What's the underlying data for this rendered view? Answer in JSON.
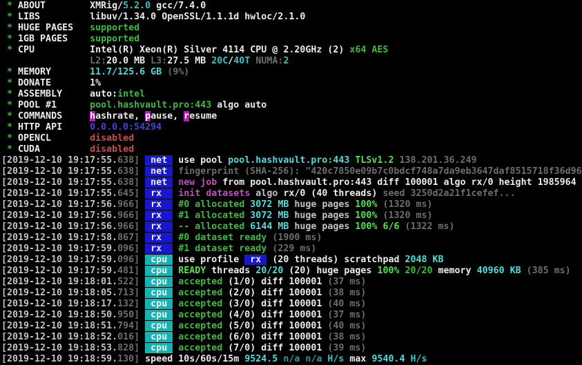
{
  "app": {
    "name": "XMRig",
    "version": "5.2.0"
  },
  "palette": {
    "background": "#000000",
    "text": "#c3c3c3",
    "bright_text": "#ececec",
    "green": "#3dbb3d",
    "bright_green": "#55e055",
    "cyan": "#3ec0c0",
    "bright_cyan": "#52dcdc",
    "dim": "#6e6e6e",
    "magenta": "#c24fc2",
    "red": "#cf4a4a",
    "blue": "#4545d4",
    "net_tag_bg": "#1717cd",
    "cpu_tag_bg": "#16b3b3",
    "hotkey_bg": "#bf17bf"
  },
  "terminal": {
    "lines": [
      [
        {
          "t": " * ",
          "c": "g"
        },
        {
          "t": "ABOUT",
          "c": "bw"
        },
        {
          "t": "        ",
          "c": "w"
        },
        {
          "t": "XMRig/",
          "c": "bw"
        },
        {
          "t": "5.2.0",
          "c": "c"
        },
        {
          "t": " gcc/7.4.0",
          "c": "bw"
        }
      ],
      [
        {
          "t": " * ",
          "c": "g"
        },
        {
          "t": "LIBS",
          "c": "bw"
        },
        {
          "t": "         ",
          "c": "w"
        },
        {
          "t": "libuv/1.34.0 OpenSSL/1.1.1d hwloc/2.1.0",
          "c": "bw"
        }
      ],
      [
        {
          "t": " * ",
          "c": "g"
        },
        {
          "t": "HUGE PAGES",
          "c": "bw"
        },
        {
          "t": "   ",
          "c": "w"
        },
        {
          "t": "supported",
          "c": "g"
        }
      ],
      [
        {
          "t": " * ",
          "c": "g"
        },
        {
          "t": "1GB PAGES",
          "c": "bw"
        },
        {
          "t": "    ",
          "c": "w"
        },
        {
          "t": "supported",
          "c": "g"
        }
      ],
      [
        {
          "t": " * ",
          "c": "g"
        },
        {
          "t": "CPU",
          "c": "bw"
        },
        {
          "t": "          ",
          "c": "w"
        },
        {
          "t": "Intel(R) Xeon(R) Silver 4114 CPU @ 2.20GHz (2) ",
          "c": "bw"
        },
        {
          "t": "x64 AES",
          "c": "g"
        }
      ],
      [
        {
          "t": "                ",
          "c": "w"
        },
        {
          "t": "L2:",
          "c": "d"
        },
        {
          "t": "20.0 MB ",
          "c": "bw"
        },
        {
          "t": "L3:",
          "c": "d"
        },
        {
          "t": "27.5 MB ",
          "c": "bw"
        },
        {
          "t": "20C",
          "c": "c"
        },
        {
          "t": "/",
          "c": "bw"
        },
        {
          "t": "40T",
          "c": "c"
        },
        {
          "t": " NUMA:",
          "c": "d"
        },
        {
          "t": "2",
          "c": "c"
        }
      ],
      [
        {
          "t": " * ",
          "c": "g"
        },
        {
          "t": "MEMORY",
          "c": "bw"
        },
        {
          "t": "       ",
          "c": "w"
        },
        {
          "t": "11.7/125.6 GB ",
          "c": "cb"
        },
        {
          "t": "(9%)",
          "c": "d"
        }
      ],
      [
        {
          "t": " * ",
          "c": "g"
        },
        {
          "t": "DONATE",
          "c": "bw"
        },
        {
          "t": "       ",
          "c": "w"
        },
        {
          "t": "1%",
          "c": "bw"
        }
      ],
      [
        {
          "t": " * ",
          "c": "g"
        },
        {
          "t": "ASSEMBLY",
          "c": "bw"
        },
        {
          "t": "     ",
          "c": "w"
        },
        {
          "t": "auto:",
          "c": "bw"
        },
        {
          "t": "intel",
          "c": "g"
        }
      ],
      [
        {
          "t": " * ",
          "c": "g"
        },
        {
          "t": "POOL #1",
          "c": "bw"
        },
        {
          "t": "      ",
          "c": "w"
        },
        {
          "t": "pool.hashvault.pro:443",
          "c": "g"
        },
        {
          "t": " algo auto",
          "c": "bw"
        }
      ],
      [
        {
          "t": " * ",
          "c": "g"
        },
        {
          "t": "COMMANDS",
          "c": "bw"
        },
        {
          "t": "     ",
          "c": "w"
        },
        {
          "t": "h",
          "c": "hk"
        },
        {
          "t": "ashrate, ",
          "c": "bw"
        },
        {
          "t": "p",
          "c": "hk"
        },
        {
          "t": "ause, ",
          "c": "bw"
        },
        {
          "t": "r",
          "c": "hk"
        },
        {
          "t": "esume",
          "c": "bw"
        }
      ],
      [
        {
          "t": " * ",
          "c": "g"
        },
        {
          "t": "HTTP API",
          "c": "bw"
        },
        {
          "t": "     ",
          "c": "w"
        },
        {
          "t": "0.0.0.0:54294",
          "c": "b"
        }
      ],
      [
        {
          "t": " * ",
          "c": "g"
        },
        {
          "t": "OPENCL",
          "c": "bw"
        },
        {
          "t": "       ",
          "c": "w"
        },
        {
          "t": "disabled",
          "c": "r"
        }
      ],
      [
        {
          "t": " * ",
          "c": "g"
        },
        {
          "t": "CUDA",
          "c": "bw"
        },
        {
          "t": "         ",
          "c": "w"
        },
        {
          "t": "disabled",
          "c": "r"
        }
      ],
      [
        {
          "t": "[2019-12-10 19:17:55.",
          "c": "w"
        },
        {
          "t": "638]",
          "c": "d"
        },
        {
          "t": " ",
          "c": "w"
        },
        {
          "t": " net ",
          "c": "tag-net",
          "n": "net-tag"
        },
        {
          "t": " ",
          "c": "w"
        },
        {
          "t": "use pool ",
          "c": "bw"
        },
        {
          "t": "pool.hashvault.pro:443 ",
          "c": "cb"
        },
        {
          "t": "TLSv1.2 ",
          "c": "gb"
        },
        {
          "t": "138.201.36.249",
          "c": "d"
        }
      ],
      [
        {
          "t": "[2019-12-10 19:17:55.",
          "c": "w"
        },
        {
          "t": "638]",
          "c": "d"
        },
        {
          "t": " ",
          "c": "w"
        },
        {
          "t": " net ",
          "c": "tag-net",
          "n": "net-tag"
        },
        {
          "t": " ",
          "c": "w"
        },
        {
          "t": "fingerprint (SHA-256): \"420c7850e09b7c0bdcf748a7da9eb3647daf8515718f36d96",
          "c": "d"
        }
      ],
      [
        {
          "t": "[2019-12-10 19:17:55.",
          "c": "w"
        },
        {
          "t": "638]",
          "c": "d"
        },
        {
          "t": " ",
          "c": "w"
        },
        {
          "t": " net ",
          "c": "tag-net",
          "n": "net-tag"
        },
        {
          "t": " ",
          "c": "w"
        },
        {
          "t": "new job",
          "c": "m"
        },
        {
          "t": " from pool.hashvault.pro:443 diff 100001 algo rx/0 height 1985964",
          "c": "bw"
        }
      ],
      [
        {
          "t": "[2019-12-10 19:17:55.",
          "c": "w"
        },
        {
          "t": "645]",
          "c": "d"
        },
        {
          "t": " ",
          "c": "w"
        },
        {
          "t": " rx  ",
          "c": "tag-net",
          "n": "rx-tag"
        },
        {
          "t": " ",
          "c": "w"
        },
        {
          "t": "init datasets",
          "c": "m"
        },
        {
          "t": " algo ",
          "c": "w"
        },
        {
          "t": "rx/0 (40 threads)",
          "c": "bw"
        },
        {
          "t": " seed 3250d2a21f1cefef...",
          "c": "d"
        }
      ],
      [
        {
          "t": "[2019-12-10 19:17:56.",
          "c": "w"
        },
        {
          "t": "966]",
          "c": "d"
        },
        {
          "t": " ",
          "c": "w"
        },
        {
          "t": " rx  ",
          "c": "tag-net",
          "n": "rx-tag"
        },
        {
          "t": " ",
          "c": "w"
        },
        {
          "t": "#0 allocated",
          "c": "g"
        },
        {
          "t": " 3072 MB",
          "c": "cb"
        },
        {
          "t": " huge pages ",
          "c": "w"
        },
        {
          "t": "100%",
          "c": "gb"
        },
        {
          "t": " (1320 ms)",
          "c": "d"
        }
      ],
      [
        {
          "t": "[2019-12-10 19:17:56.",
          "c": "w"
        },
        {
          "t": "966]",
          "c": "d"
        },
        {
          "t": " ",
          "c": "w"
        },
        {
          "t": " rx  ",
          "c": "tag-net",
          "n": "rx-tag"
        },
        {
          "t": " ",
          "c": "w"
        },
        {
          "t": "#1 allocated",
          "c": "g"
        },
        {
          "t": " 3072 MB",
          "c": "cb"
        },
        {
          "t": " huge pages ",
          "c": "w"
        },
        {
          "t": "100%",
          "c": "gb"
        },
        {
          "t": " (1320 ms)",
          "c": "d"
        }
      ],
      [
        {
          "t": "[2019-12-10 19:17:56.",
          "c": "w"
        },
        {
          "t": "966]",
          "c": "d"
        },
        {
          "t": " ",
          "c": "w"
        },
        {
          "t": " rx  ",
          "c": "tag-net",
          "n": "rx-tag"
        },
        {
          "t": " ",
          "c": "w"
        },
        {
          "t": "-- allocated",
          "c": "g"
        },
        {
          "t": " 6144 MB",
          "c": "cb"
        },
        {
          "t": " huge pages ",
          "c": "w"
        },
        {
          "t": "100% 6/6",
          "c": "gb"
        },
        {
          "t": " (1322 ms)",
          "c": "d"
        }
      ],
      [
        {
          "t": "[2019-12-10 19:17:58.",
          "c": "w"
        },
        {
          "t": "867]",
          "c": "d"
        },
        {
          "t": " ",
          "c": "w"
        },
        {
          "t": " rx  ",
          "c": "tag-net",
          "n": "rx-tag"
        },
        {
          "t": " ",
          "c": "w"
        },
        {
          "t": "#0 dataset ready",
          "c": "g"
        },
        {
          "t": " (1900 ms)",
          "c": "d"
        }
      ],
      [
        {
          "t": "[2019-12-10 19:17:59.",
          "c": "w"
        },
        {
          "t": "096]",
          "c": "d"
        },
        {
          "t": " ",
          "c": "w"
        },
        {
          "t": " rx  ",
          "c": "tag-net",
          "n": "rx-tag"
        },
        {
          "t": " ",
          "c": "w"
        },
        {
          "t": "#1 dataset ready",
          "c": "g"
        },
        {
          "t": " (229 ms)",
          "c": "d"
        }
      ],
      [
        {
          "t": "[2019-12-10 19:17:59.",
          "c": "w"
        },
        {
          "t": "096]",
          "c": "d"
        },
        {
          "t": " ",
          "c": "w"
        },
        {
          "t": " cpu ",
          "c": "tag-cpu",
          "n": "cpu-tag"
        },
        {
          "t": " ",
          "c": "w"
        },
        {
          "t": "use profile ",
          "c": "bw"
        },
        {
          "t": " rx ",
          "c": "tag-net",
          "n": "rx-tag"
        },
        {
          "t": " (20 threads) scratchpad ",
          "c": "bw"
        },
        {
          "t": "2048 KB",
          "c": "cb"
        }
      ],
      [
        {
          "t": "[2019-12-10 19:17:59.",
          "c": "w"
        },
        {
          "t": "481]",
          "c": "d"
        },
        {
          "t": " ",
          "c": "w"
        },
        {
          "t": " cpu ",
          "c": "tag-cpu",
          "n": "cpu-tag"
        },
        {
          "t": " ",
          "c": "w"
        },
        {
          "t": "READY",
          "c": "gb"
        },
        {
          "t": " threads ",
          "c": "bw"
        },
        {
          "t": "20/20",
          "c": "cb"
        },
        {
          "t": " (20) huge pages ",
          "c": "bw"
        },
        {
          "t": "100%",
          "c": "gb"
        },
        {
          "t": " 20/20",
          "c": "g"
        },
        {
          "t": " memory ",
          "c": "bw"
        },
        {
          "t": "40960 KB",
          "c": "cb"
        },
        {
          "t": " (385 ms)",
          "c": "d"
        }
      ],
      [
        {
          "t": "[2019-12-10 19:18:01.",
          "c": "w"
        },
        {
          "t": "522]",
          "c": "d"
        },
        {
          "t": " ",
          "c": "w"
        },
        {
          "t": " cpu ",
          "c": "tag-cpu",
          "n": "cpu-tag"
        },
        {
          "t": " ",
          "c": "w"
        },
        {
          "t": "accepted",
          "c": "g"
        },
        {
          "t": " (1/0) diff 100001",
          "c": "bw"
        },
        {
          "t": " (37 ms)",
          "c": "d"
        }
      ],
      [
        {
          "t": "[2019-12-10 19:18:05.",
          "c": "w"
        },
        {
          "t": "713]",
          "c": "d"
        },
        {
          "t": " ",
          "c": "w"
        },
        {
          "t": " cpu ",
          "c": "tag-cpu",
          "n": "cpu-tag"
        },
        {
          "t": " ",
          "c": "w"
        },
        {
          "t": "accepted",
          "c": "g"
        },
        {
          "t": " (2/0) diff 100001",
          "c": "bw"
        },
        {
          "t": " (38 ms)",
          "c": "d"
        }
      ],
      [
        {
          "t": "[2019-12-10 19:18:17.",
          "c": "w"
        },
        {
          "t": "132]",
          "c": "d"
        },
        {
          "t": " ",
          "c": "w"
        },
        {
          "t": " cpu ",
          "c": "tag-cpu",
          "n": "cpu-tag"
        },
        {
          "t": " ",
          "c": "w"
        },
        {
          "t": "accepted",
          "c": "g"
        },
        {
          "t": " (3/0) diff 100001",
          "c": "bw"
        },
        {
          "t": " (40 ms)",
          "c": "d"
        }
      ],
      [
        {
          "t": "[2019-12-10 19:18:50.",
          "c": "w"
        },
        {
          "t": "950]",
          "c": "d"
        },
        {
          "t": " ",
          "c": "w"
        },
        {
          "t": " cpu ",
          "c": "tag-cpu",
          "n": "cpu-tag"
        },
        {
          "t": " ",
          "c": "w"
        },
        {
          "t": "accepted",
          "c": "g"
        },
        {
          "t": " (4/0) diff 100001",
          "c": "bw"
        },
        {
          "t": " (37 ms)",
          "c": "d"
        }
      ],
      [
        {
          "t": "[2019-12-10 19:18:51.",
          "c": "w"
        },
        {
          "t": "794]",
          "c": "d"
        },
        {
          "t": " ",
          "c": "w"
        },
        {
          "t": " cpu ",
          "c": "tag-cpu",
          "n": "cpu-tag"
        },
        {
          "t": " ",
          "c": "w"
        },
        {
          "t": "accepted",
          "c": "g"
        },
        {
          "t": " (5/0) diff 100001",
          "c": "bw"
        },
        {
          "t": " (40 ms)",
          "c": "d"
        }
      ],
      [
        {
          "t": "[2019-12-10 19:18:52.",
          "c": "w"
        },
        {
          "t": "016]",
          "c": "d"
        },
        {
          "t": " ",
          "c": "w"
        },
        {
          "t": " cpu ",
          "c": "tag-cpu",
          "n": "cpu-tag"
        },
        {
          "t": " ",
          "c": "w"
        },
        {
          "t": "accepted",
          "c": "g"
        },
        {
          "t": " (6/0) diff 100001",
          "c": "bw"
        },
        {
          "t": " (38 ms)",
          "c": "d"
        }
      ],
      [
        {
          "t": "[2019-12-10 19:18:53.",
          "c": "w"
        },
        {
          "t": "828]",
          "c": "d"
        },
        {
          "t": " ",
          "c": "w"
        },
        {
          "t": " cpu ",
          "c": "tag-cpu",
          "n": "cpu-tag"
        },
        {
          "t": " ",
          "c": "w"
        },
        {
          "t": "accepted",
          "c": "g"
        },
        {
          "t": " (7/0) diff 100001",
          "c": "bw"
        },
        {
          "t": " (39 ms)",
          "c": "d"
        }
      ],
      [
        {
          "t": "[2019-12-10 19:18:59.",
          "c": "w"
        },
        {
          "t": "130]",
          "c": "d"
        },
        {
          "t": " ",
          "c": "w"
        },
        {
          "t": "speed 10s/60s/15m ",
          "c": "bw"
        },
        {
          "t": "9524.5 ",
          "c": "cb"
        },
        {
          "t": "n/a n/a ",
          "c": "cd"
        },
        {
          "t": "H/s ",
          "c": "c"
        },
        {
          "t": "max ",
          "c": "bw"
        },
        {
          "t": "9540.4 ",
          "c": "cb"
        },
        {
          "t": "H/s",
          "c": "c"
        }
      ]
    ]
  }
}
